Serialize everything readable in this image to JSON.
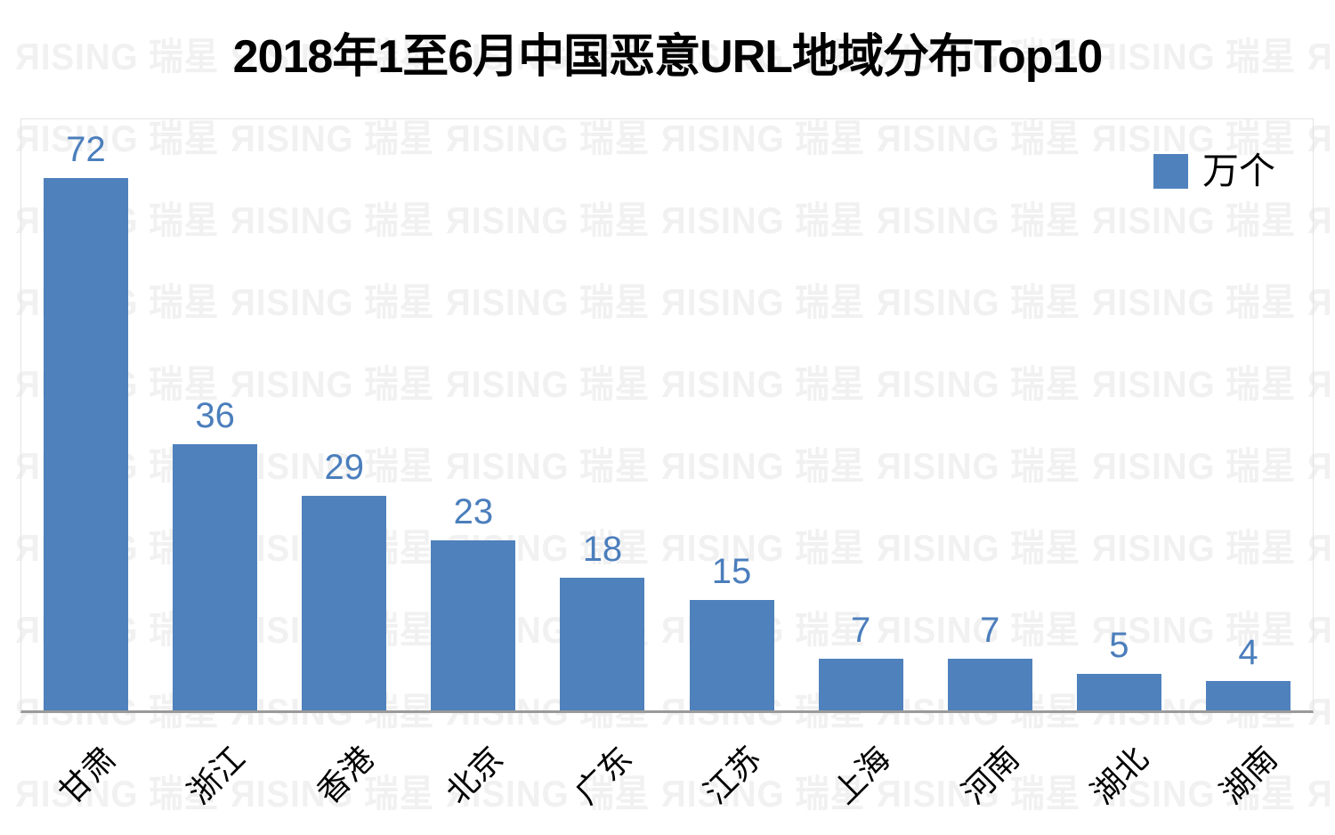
{
  "title": {
    "text": "2018年1至6月中国恶意URL地域分布Top10"
  },
  "legend": {
    "label": "万个",
    "swatch_color": "#4F81BD"
  },
  "watermark": {
    "text": "ЯISING 瑞星",
    "color": "#F1F1F1"
  },
  "colors": {
    "bar": "#4F81BD",
    "value_label": "#4B7EBC",
    "axis_line": "#9A9A9A",
    "plot_border": "#E3E3E3",
    "title_text": "#000000",
    "category_text": "#000000"
  },
  "chart_data": {
    "type": "bar",
    "title": "2018年1至6月中国恶意URL地域分布Top10",
    "categories": [
      "甘肃",
      "浙江",
      "香港",
      "北京",
      "广东",
      "江苏",
      "上海",
      "河南",
      "湖北",
      "湖南"
    ],
    "values": [
      72,
      36,
      29,
      23,
      18,
      15,
      7,
      7,
      5,
      4
    ],
    "series_name": "万个",
    "unit": "万个",
    "xlabel": "",
    "ylabel": "",
    "ylim": [
      0,
      80
    ],
    "grid": false,
    "legend_position": "top-right-inside",
    "data_labels": true,
    "category_label_rotation_deg": 45
  }
}
